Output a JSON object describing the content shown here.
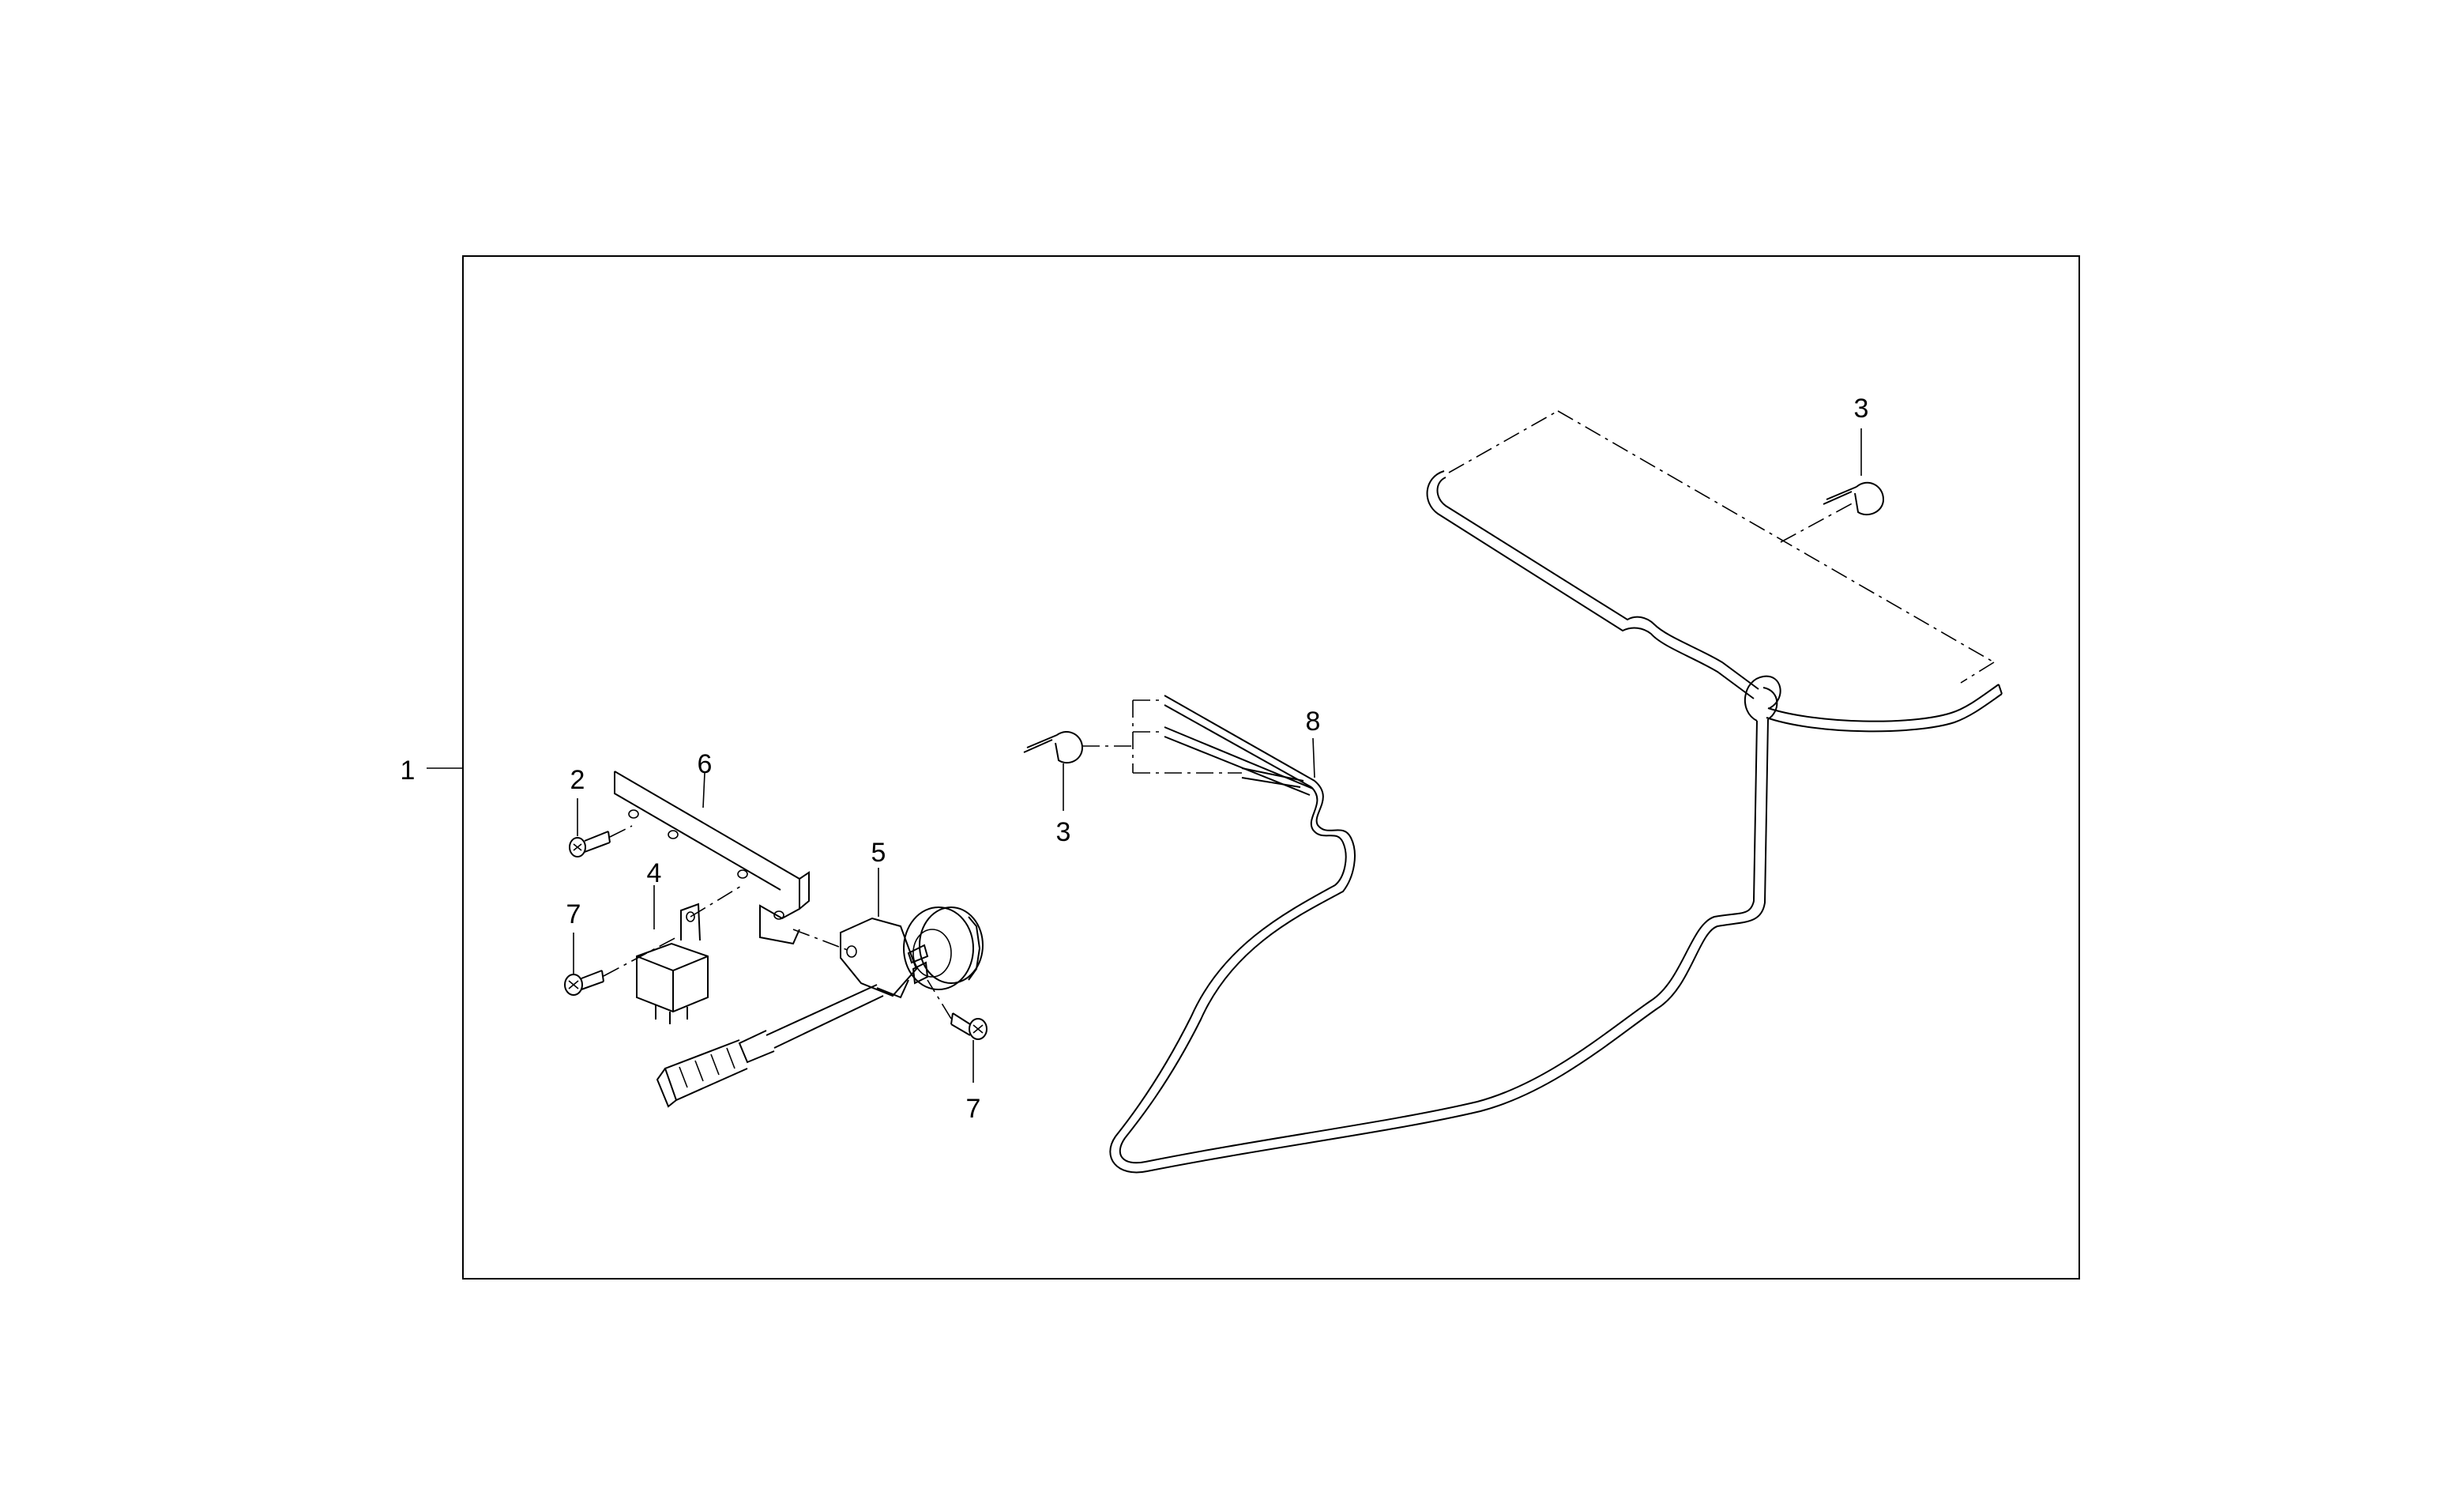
{
  "callouts": {
    "assembly": "1",
    "screw_top": "2",
    "clip_left": "3",
    "clip_right": "3",
    "relay": "4",
    "buzzer": "5",
    "bracket": "6",
    "screw_left": "7",
    "screw_bottom": "7",
    "harness": "8"
  },
  "colors": {
    "line": "#000000",
    "background": "#ffffff"
  }
}
